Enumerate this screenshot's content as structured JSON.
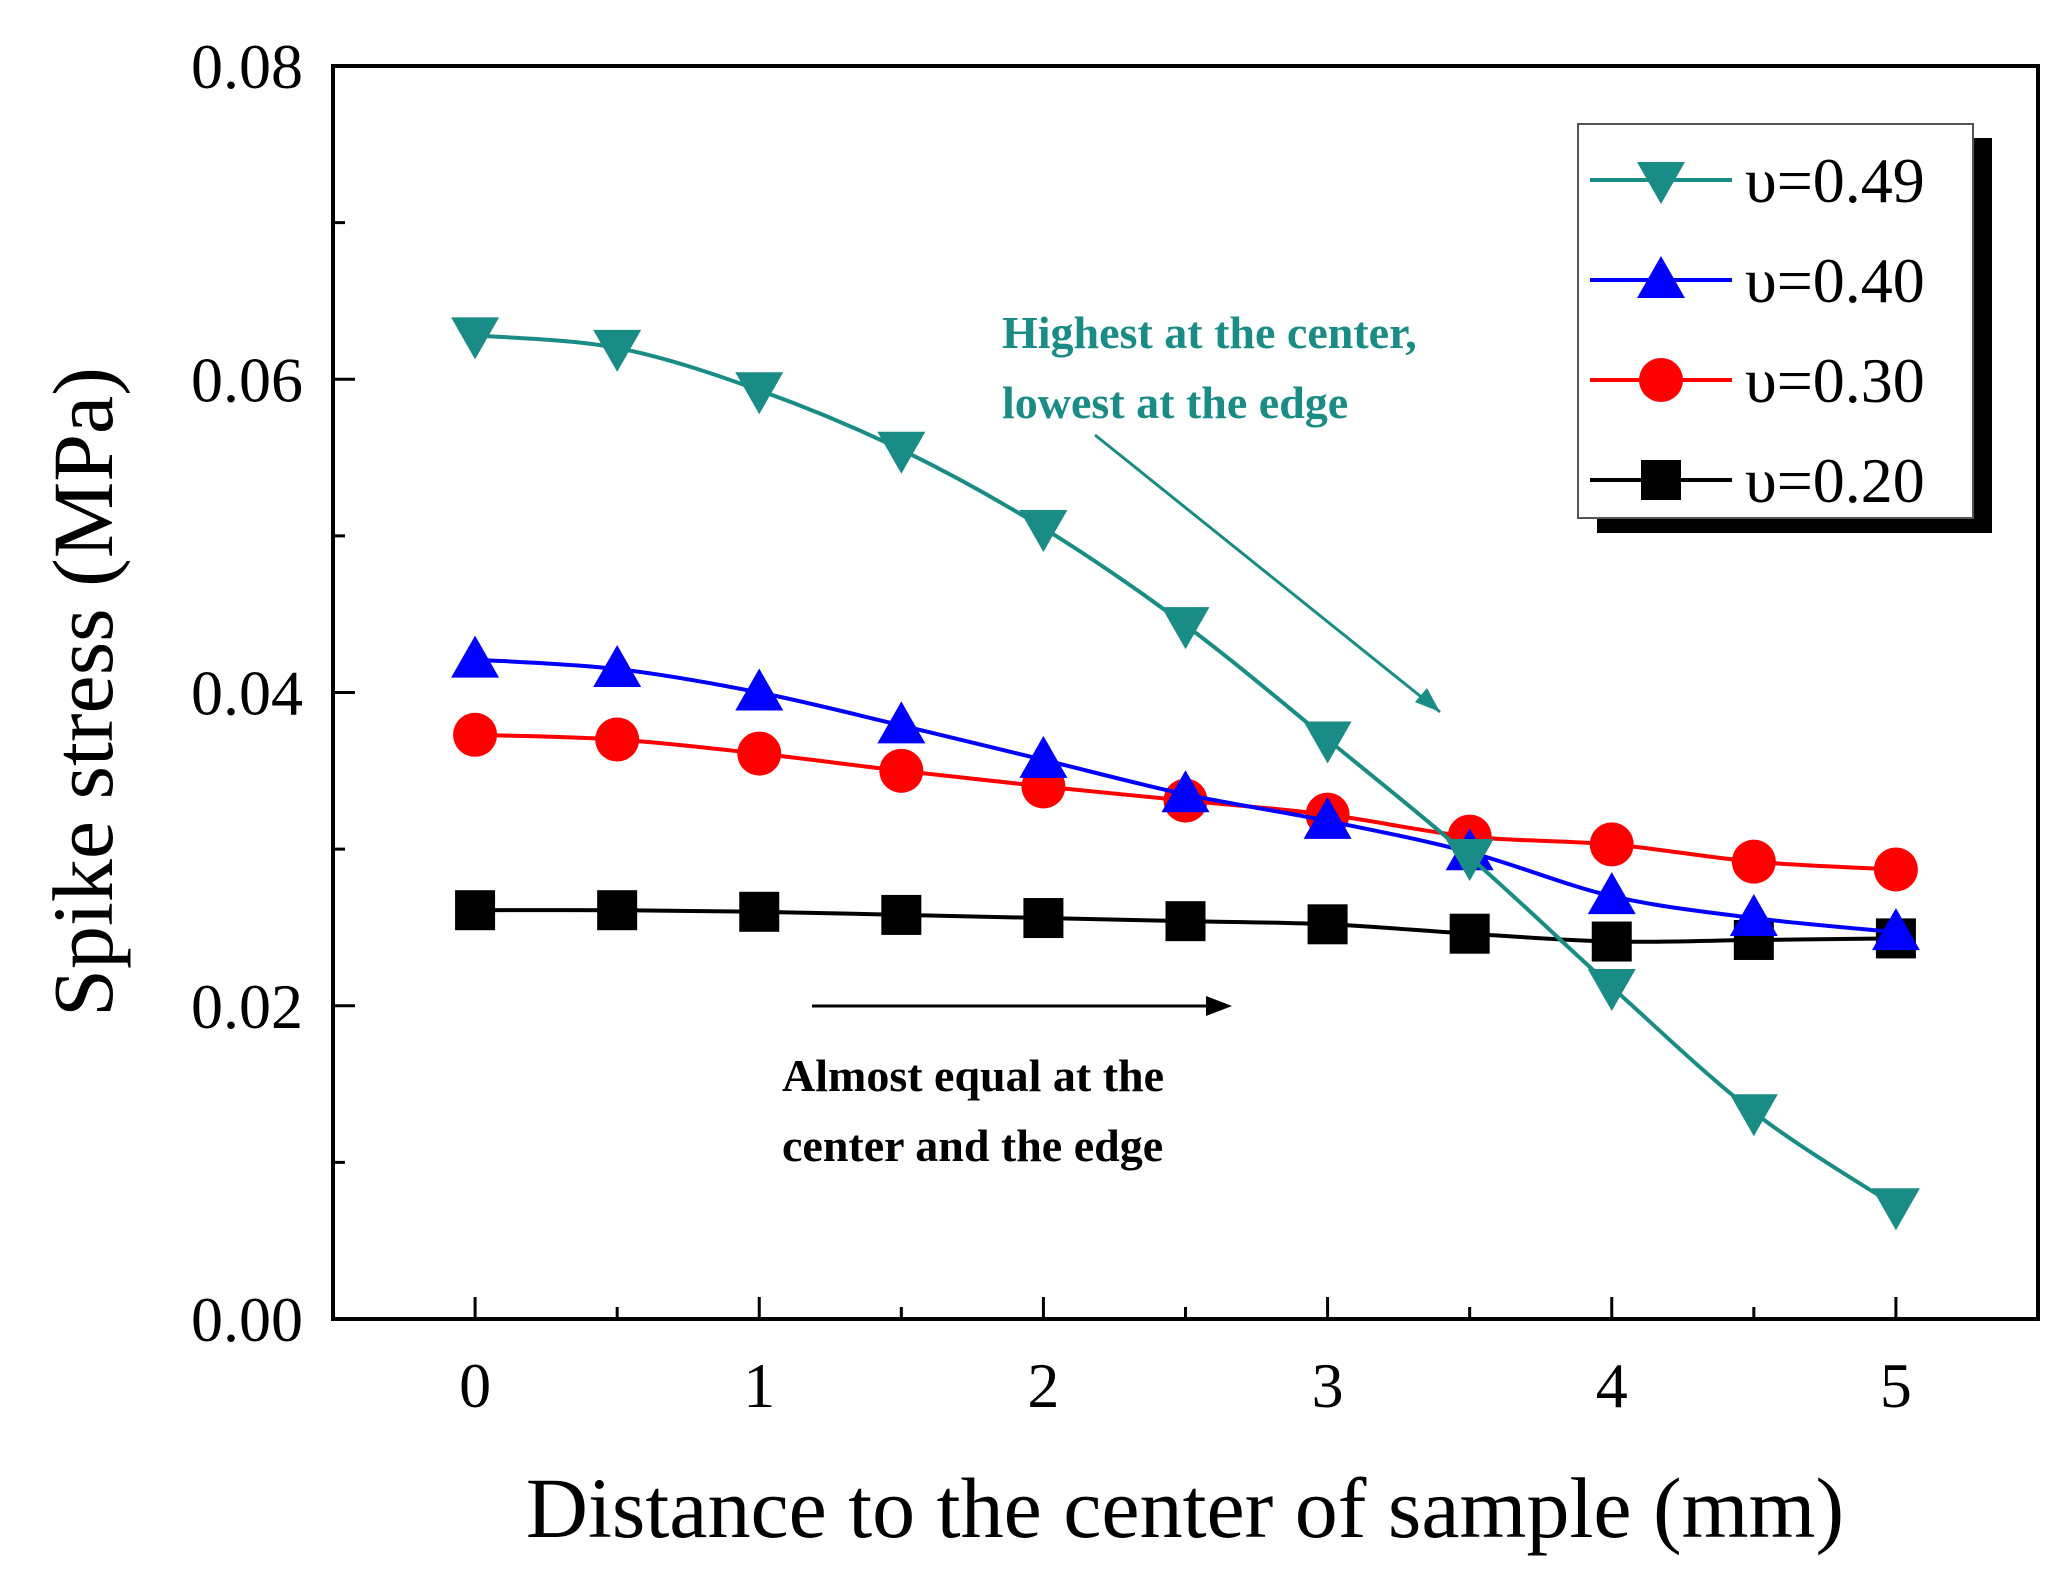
{
  "chart_data": {
    "type": "line",
    "title": "",
    "xlabel": "Distance to the center of sample (mm)",
    "ylabel": "Spike stress (MPa)",
    "xlim": [
      -0.5,
      5.5
    ],
    "ylim": [
      0.0,
      0.08
    ],
    "x_ticks": [
      "0",
      "1",
      "2",
      "3",
      "4",
      "5"
    ],
    "y_ticks": [
      "0.00",
      "0.02",
      "0.04",
      "0.06",
      "0.08"
    ],
    "grid": false,
    "legend_position": "top-right",
    "x": [
      0,
      0.5,
      1,
      1.5,
      2,
      2.5,
      3,
      3.5,
      4,
      4.5,
      5
    ],
    "series": [
      {
        "name": "υ=0.49",
        "color": "#1a8c86",
        "marker": "triangle-down",
        "values": [
          0.0628,
          0.062,
          0.0593,
          0.0555,
          0.0505,
          0.0443,
          0.037,
          0.0295,
          0.0212,
          0.0132,
          0.0072
        ]
      },
      {
        "name": "υ=0.40",
        "color": "#0000ff",
        "marker": "triangle-up",
        "values": [
          0.0421,
          0.0415,
          0.04,
          0.0379,
          0.0357,
          0.0335,
          0.0318,
          0.0298,
          0.027,
          0.0256,
          0.0247
        ]
      },
      {
        "name": "υ=0.30",
        "color": "#ff0000",
        "marker": "circle",
        "values": [
          0.0373,
          0.037,
          0.0361,
          0.035,
          0.034,
          0.0331,
          0.0322,
          0.0308,
          0.0303,
          0.0292,
          0.0287
        ]
      },
      {
        "name": "υ=0.20",
        "color": "#000000",
        "marker": "square",
        "values": [
          0.0261,
          0.0261,
          0.026,
          0.0258,
          0.0256,
          0.0254,
          0.0252,
          0.0246,
          0.0241,
          0.0242,
          0.0243
        ]
      }
    ],
    "annotations": [
      {
        "lines": [
          "Highest at the center,",
          "lowest at the edge"
        ],
        "color": "#1a8c86"
      },
      {
        "lines": [
          "Almost equal at the",
          "center and the edge"
        ],
        "color": "#000000"
      }
    ]
  }
}
